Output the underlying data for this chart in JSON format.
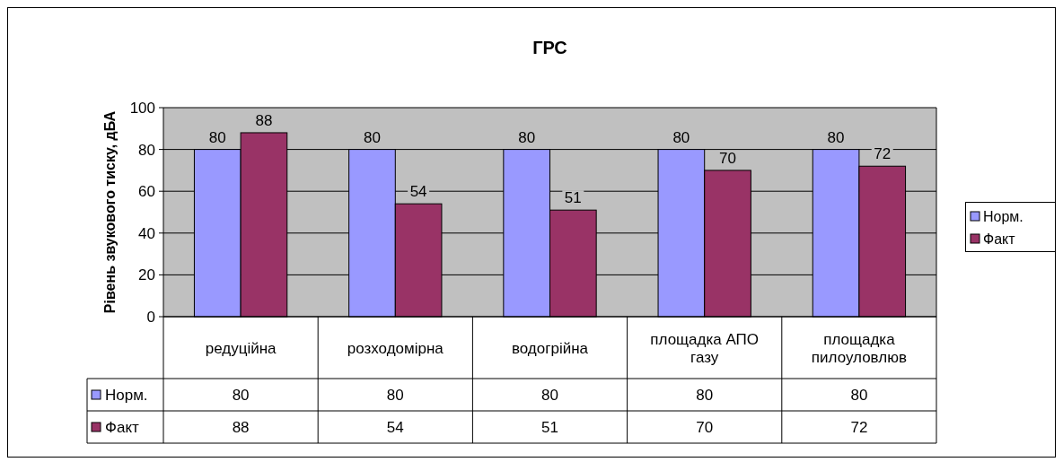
{
  "chart_data": {
    "type": "bar",
    "title": "ГРС",
    "ylabel": "Рівень звукового тиску, дБА",
    "categories": [
      "редуційна",
      "розходомірна",
      "водогрійна",
      "площадка АПО газу",
      "площадка пилоуловлюв"
    ],
    "series": [
      {
        "name": "Норм.",
        "color": "#9999ff",
        "values": [
          80,
          80,
          80,
          80,
          80
        ]
      },
      {
        "name": "Факт",
        "color": "#993366",
        "values": [
          88,
          54,
          51,
          70,
          72
        ]
      }
    ],
    "annotations": [
      {
        "text": "80",
        "x": "редуційна",
        "y": 80
      },
      {
        "text": "88",
        "x": "редуційна",
        "y": 88
      },
      {
        "text": "80",
        "x": "розходомірна",
        "y": 80
      },
      {
        "text": "54",
        "x": "розходомірна",
        "y": 54
      },
      {
        "text": "80",
        "x": "водогрійна",
        "y": 80
      },
      {
        "text": "51",
        "x": "водогрійна",
        "y": 51
      },
      {
        "text": "80",
        "x": "площадка АПО газу",
        "y": 80
      },
      {
        "text": "70",
        "x": "площадка АПО газу",
        "y": 70
      },
      {
        "text": "80",
        "x": "площадка пилоуловлюв",
        "y": 80
      },
      {
        "text": "72",
        "x": "площадка пилоуловлюв",
        "y": 72
      }
    ],
    "ylim": [
      0,
      100
    ],
    "yticks": [
      0,
      20,
      40,
      60,
      80,
      100
    ],
    "grid": "y",
    "legend": "right",
    "data_labels": true
  }
}
